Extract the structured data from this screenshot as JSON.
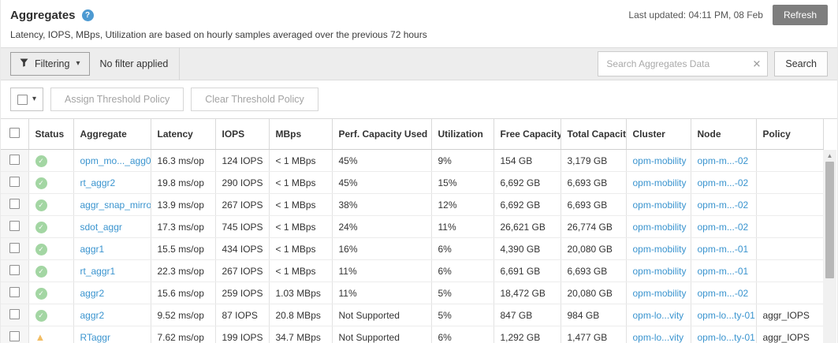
{
  "page": {
    "title": "Aggregates",
    "subtitle": "Latency, IOPS, MBps, Utilization are based on hourly samples averaged over the previous 72 hours",
    "last_updated": "Last updated: 04:11 PM, 08 Feb",
    "refresh_label": "Refresh"
  },
  "filter_bar": {
    "filtering_label": "Filtering",
    "filter_status": "No filter applied",
    "search_placeholder": "Search Aggregates Data",
    "search_value": "",
    "search_button_label": "Search"
  },
  "toolbar": {
    "assign_threshold_label": "Assign Threshold Policy",
    "clear_threshold_label": "Clear Threshold Policy"
  },
  "table": {
    "columns": [
      "Status",
      "Aggregate",
      "Latency",
      "IOPS",
      "MBps",
      "Perf. Capacity Used",
      "Utilization",
      "Free Capacity",
      "Total Capacity",
      "Cluster",
      "Node",
      "Policy"
    ],
    "sorted_column_index": 5,
    "sort_direction": "desc",
    "rows": [
      {
        "status": "ok",
        "aggregate": "opm_mo..._agg0",
        "latency": "16.3 ms/op",
        "iops": "124 IOPS",
        "mbps": "< 1 MBps",
        "perf_capacity_used": "45%",
        "utilization": "9%",
        "free_capacity": "154 GB",
        "total_capacity": "3,179 GB",
        "cluster": "opm-mobility",
        "node": "opm-m...-02",
        "policy": ""
      },
      {
        "status": "ok",
        "aggregate": "rt_aggr2",
        "latency": "19.8 ms/op",
        "iops": "290 IOPS",
        "mbps": "< 1 MBps",
        "perf_capacity_used": "45%",
        "utilization": "15%",
        "free_capacity": "6,692 GB",
        "total_capacity": "6,693 GB",
        "cluster": "opm-mobility",
        "node": "opm-m...-02",
        "policy": ""
      },
      {
        "status": "ok",
        "aggregate": "aggr_snap_mirror",
        "latency": "13.9 ms/op",
        "iops": "267 IOPS",
        "mbps": "< 1 MBps",
        "perf_capacity_used": "38%",
        "utilization": "12%",
        "free_capacity": "6,692 GB",
        "total_capacity": "6,693 GB",
        "cluster": "opm-mobility",
        "node": "opm-m...-02",
        "policy": ""
      },
      {
        "status": "ok",
        "aggregate": "sdot_aggr",
        "latency": "17.3 ms/op",
        "iops": "745 IOPS",
        "mbps": "< 1 MBps",
        "perf_capacity_used": "24%",
        "utilization": "11%",
        "free_capacity": "26,621 GB",
        "total_capacity": "26,774 GB",
        "cluster": "opm-mobility",
        "node": "opm-m...-02",
        "policy": ""
      },
      {
        "status": "ok",
        "aggregate": "aggr1",
        "latency": "15.5 ms/op",
        "iops": "434 IOPS",
        "mbps": "< 1 MBps",
        "perf_capacity_used": "16%",
        "utilization": "6%",
        "free_capacity": "4,390 GB",
        "total_capacity": "20,080 GB",
        "cluster": "opm-mobility",
        "node": "opm-m...-01",
        "policy": ""
      },
      {
        "status": "ok",
        "aggregate": "rt_aggr1",
        "latency": "22.3 ms/op",
        "iops": "267 IOPS",
        "mbps": "< 1 MBps",
        "perf_capacity_used": "11%",
        "utilization": "6%",
        "free_capacity": "6,691 GB",
        "total_capacity": "6,693 GB",
        "cluster": "opm-mobility",
        "node": "opm-m...-01",
        "policy": ""
      },
      {
        "status": "ok",
        "aggregate": "aggr2",
        "latency": "15.6 ms/op",
        "iops": "259 IOPS",
        "mbps": "1.03 MBps",
        "perf_capacity_used": "11%",
        "utilization": "5%",
        "free_capacity": "18,472 GB",
        "total_capacity": "20,080 GB",
        "cluster": "opm-mobility",
        "node": "opm-m...-02",
        "policy": ""
      },
      {
        "status": "ok",
        "aggregate": "aggr2",
        "latency": "9.52 ms/op",
        "iops": "87 IOPS",
        "mbps": "20.8 MBps",
        "perf_capacity_used": "Not Supported",
        "utilization": "5%",
        "free_capacity": "847 GB",
        "total_capacity": "984 GB",
        "cluster": "opm-lo...vity",
        "node": "opm-lo...ty-01",
        "policy": "aggr_IOPS"
      },
      {
        "status": "warning",
        "aggregate": "RTaggr",
        "latency": "7.62 ms/op",
        "iops": "199 IOPS",
        "mbps": "34.7 MBps",
        "perf_capacity_used": "Not Supported",
        "utilization": "6%",
        "free_capacity": "1,292 GB",
        "total_capacity": "1,477 GB",
        "cluster": "opm-lo...vity",
        "node": "opm-lo...ty-01",
        "policy": "aggr_IOPS"
      }
    ]
  },
  "colors": {
    "link_blue": "#3a94cf",
    "status_ok_green": "#a3d6a3",
    "status_warning_orange": "#f2bd63",
    "refresh_button_gray": "#7e7e7e",
    "filter_bar_gray": "#ededed",
    "help_icon_blue": "#4d9ad2"
  }
}
